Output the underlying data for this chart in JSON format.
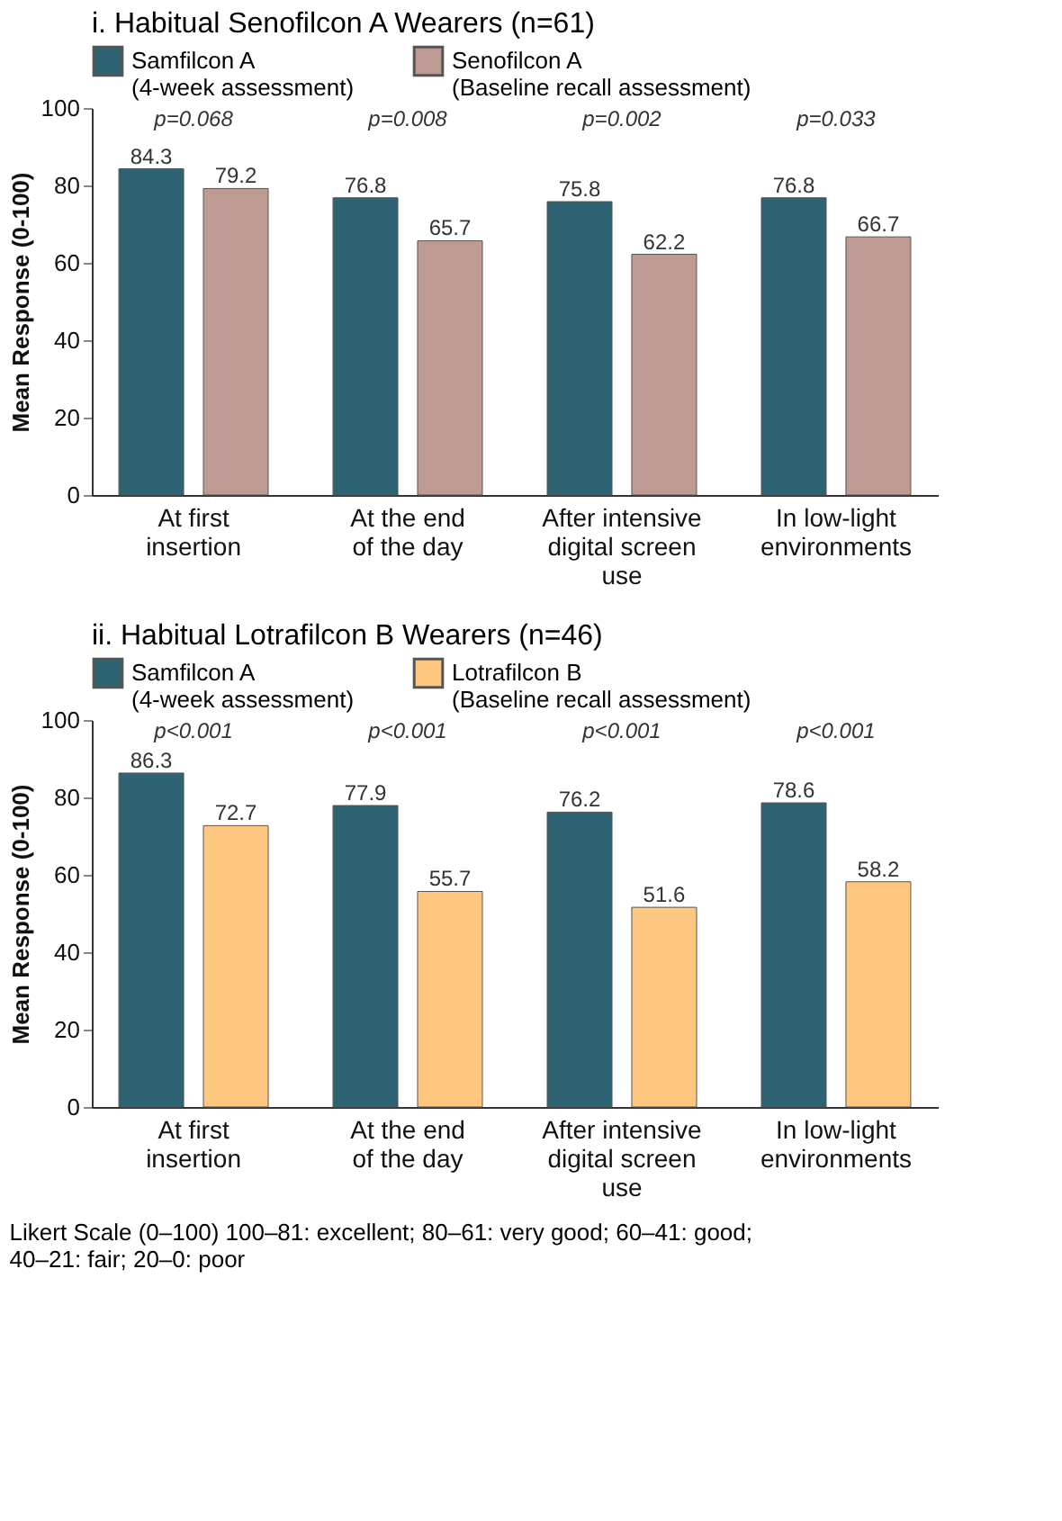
{
  "chart_data": [
    {
      "type": "bar",
      "title": "i. Habitual Senofilcon A Wearers (n=61)",
      "ylabel": "Mean Response (0-100)",
      "categories": [
        "At first\ninsertion",
        "At the end\nof the day",
        "After intensive\ndigital screen\nuse",
        "In low-light\nenvironments"
      ],
      "series": [
        {
          "name": "Samfilcon A\n(4-week assessment)",
          "color": "#2e6373",
          "values": [
            84.3,
            76.8,
            75.8,
            76.8
          ]
        },
        {
          "name": "Senofilcon A\n(Baseline recall assessment)",
          "color": "#bd9a92",
          "values": [
            79.2,
            65.7,
            62.2,
            66.7
          ]
        }
      ],
      "ylim": [
        0,
        100
      ],
      "yticks": [
        0,
        20,
        40,
        60,
        80,
        100
      ],
      "grid": false,
      "legend": "top left",
      "data_labels": true,
      "annotations": [
        "p=0.068",
        "p=0.008",
        "p=0.002",
        "p=0.033"
      ]
    },
    {
      "type": "bar",
      "title": "ii. Habitual Lotrafilcon B Wearers (n=46)",
      "ylabel": "Mean Response (0-100)",
      "categories": [
        "At first\ninsertion",
        "At the end\nof the day",
        "After intensive\ndigital screen\nuse",
        "In low-light\nenvironments"
      ],
      "series": [
        {
          "name": "Samfilcon A\n(4-week assessment)",
          "color": "#2e6373",
          "values": [
            86.3,
            77.9,
            76.2,
            78.6
          ]
        },
        {
          "name": "Lotrafilcon B\n(Baseline recall assessment)",
          "color": "#fdc77f",
          "values": [
            72.7,
            55.7,
            51.6,
            58.2
          ]
        }
      ],
      "ylim": [
        0,
        100
      ],
      "yticks": [
        0,
        20,
        40,
        60,
        80,
        100
      ],
      "grid": false,
      "legend": "top left",
      "data_labels": true,
      "annotations": [
        "p<0.001",
        "p<0.001",
        "p<0.001",
        "p<0.001",
        "Likert Scale (0–100) 100–81: excellent; 80–61: very good; 60–41: good;\n40–21: fair; 20–0: poor"
      ]
    }
  ]
}
